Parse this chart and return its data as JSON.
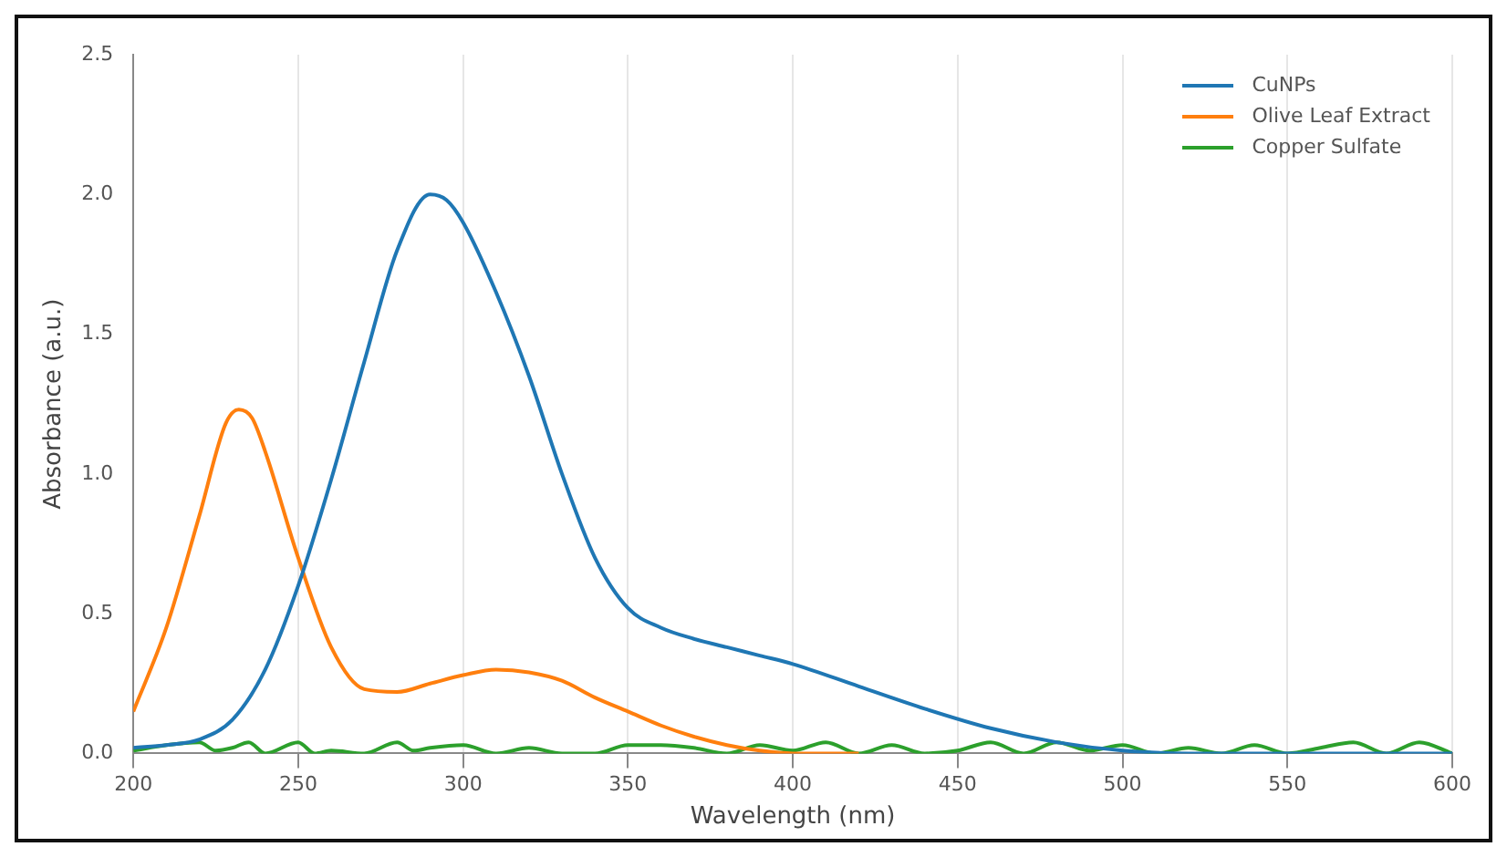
{
  "chart_data": {
    "type": "line",
    "xlabel": "Wavelength (nm)",
    "ylabel": "Absorbance (a.u.)",
    "xlim": [
      200,
      600
    ],
    "xticks": [
      200,
      250,
      300,
      350,
      400,
      450,
      500,
      550,
      600
    ],
    "ylim": [
      0,
      2.5
    ],
    "yticks": [
      {
        "value": 0,
        "label": "0.0"
      },
      {
        "value": 0.5,
        "label": "0.5"
      },
      {
        "value": 1,
        "label": "1.0"
      },
      {
        "value": 1.5,
        "label": "1.5"
      },
      {
        "value": 2,
        "label": "2.0"
      },
      {
        "value": 2.5,
        "label": "2.5"
      }
    ],
    "grid": "x",
    "legend": "top right",
    "marker": "none",
    "line_style": "solid",
    "series": [
      {
        "name": "CuNPs",
        "color": "#1f77b4",
        "x": [
          200,
          210,
          220,
          230,
          240,
          250,
          260,
          270,
          280,
          290,
          295,
          300,
          310,
          320,
          330,
          340,
          350,
          360,
          370,
          380,
          390,
          400,
          420,
          440,
          460,
          480,
          500,
          520,
          560,
          600
        ],
        "values": [
          0.02,
          0.03,
          0.05,
          0.12,
          0.3,
          0.6,
          0.98,
          1.4,
          1.8,
          2.0,
          1.98,
          1.9,
          1.65,
          1.35,
          1.0,
          0.7,
          0.52,
          0.45,
          0.41,
          0.38,
          0.35,
          0.32,
          0.24,
          0.16,
          0.09,
          0.04,
          0.01,
          0,
          0,
          0
        ]
      },
      {
        "name": "Olive Leaf Extract",
        "color": "#ff7f0e",
        "x": [
          200,
          210,
          220,
          228,
          232,
          236,
          240,
          250,
          260,
          270,
          280,
          290,
          300,
          310,
          320,
          330,
          340,
          350,
          360,
          370,
          380,
          390,
          400,
          410,
          420
        ],
        "values": [
          0.15,
          0.45,
          0.85,
          1.18,
          1.23,
          1.2,
          1.08,
          0.7,
          0.38,
          0.23,
          0.22,
          0.25,
          0.28,
          0.3,
          0.29,
          0.26,
          0.2,
          0.15,
          0.1,
          0.06,
          0.03,
          0.01,
          0,
          0,
          0
        ]
      },
      {
        "name": "Copper Sulfate",
        "color": "#2ca02c",
        "x": [
          200,
          210,
          220,
          225,
          230,
          235,
          240,
          250,
          255,
          260,
          270,
          280,
          285,
          290,
          300,
          310,
          320,
          330,
          340,
          350,
          360,
          370,
          380,
          390,
          400,
          410,
          420,
          430,
          440,
          450,
          460,
          470,
          480,
          490,
          500,
          510,
          520,
          530,
          540,
          550,
          560,
          570,
          580,
          590,
          600
        ],
        "values": [
          0.01,
          0.03,
          0.04,
          0.01,
          0.02,
          0.04,
          0.0,
          0.04,
          0.0,
          0.01,
          0.0,
          0.04,
          0.01,
          0.02,
          0.03,
          0.0,
          0.02,
          0.0,
          0.0,
          0.03,
          0.03,
          0.02,
          0.0,
          0.03,
          0.01,
          0.04,
          0.0,
          0.03,
          0.0,
          0.01,
          0.04,
          0.0,
          0.04,
          0.01,
          0.03,
          0.0,
          0.02,
          0.0,
          0.03,
          0.0,
          0.02,
          0.04,
          0.0,
          0.04,
          0.0
        ]
      }
    ]
  }
}
